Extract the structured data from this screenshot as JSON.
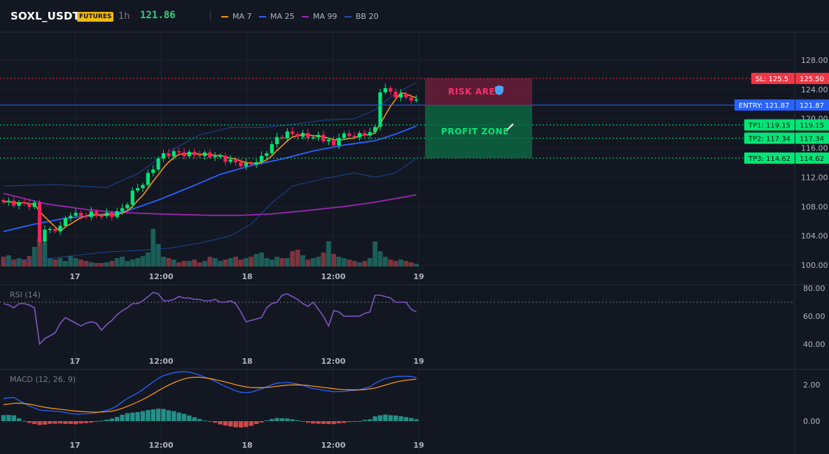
{
  "header": {
    "symbol": "SOXL_USDT",
    "badge": "FUTURES",
    "interval": "1h",
    "last_price": "121.86",
    "indicators": [
      {
        "label": "MA 7",
        "color": "#f7931a"
      },
      {
        "label": "MA 25",
        "color": "#2962ff"
      },
      {
        "label": "MA 99",
        "color": "#9c27b0"
      },
      {
        "label": "BB 20",
        "color": "#1e4fa8"
      }
    ]
  },
  "zones": {
    "risk_label": "RISK AREA",
    "profit_label": "PROFIT ZONE"
  },
  "tags": {
    "sl": {
      "text": "SL: 125.5",
      "value": "125.50",
      "price": 125.5,
      "color": "#f23645"
    },
    "entry": {
      "text": "ENTRY: 121.87",
      "value": "121.87",
      "price": 121.87,
      "color": "#2962ff"
    },
    "tp1": {
      "text": "TP1: 119.15",
      "value": "119.15",
      "price": 119.15,
      "color": "#00e676"
    },
    "tp2": {
      "text": "TP2: 117.34",
      "value": "117.34",
      "price": 117.34,
      "color": "#00e676"
    },
    "tp3": {
      "text": "TP3: 114.62",
      "value": "114.62",
      "price": 114.62,
      "color": "#00e676"
    }
  },
  "panes": {
    "rsi_title": "RSI (14)",
    "macd_title": "MACD (12, 26, 9)"
  },
  "chart_data": {
    "type": "candlestick",
    "price_axis_ticks": [
      "128.00",
      "124.00",
      "120.00",
      "116.00",
      "112.00",
      "108.00",
      "104.00",
      "100.00"
    ],
    "price_tick_values": [
      128,
      124,
      120,
      116,
      112,
      108,
      104,
      100
    ],
    "time_labels": [
      "17",
      "12:00",
      "18",
      "12:00",
      "19"
    ],
    "rsi": {
      "ticks": [
        "80.00",
        "60.00",
        "40.00"
      ],
      "tick_values": [
        80,
        60,
        40
      ],
      "overbought": 70,
      "values": [
        69,
        68,
        66,
        69,
        69,
        68,
        66,
        40,
        44,
        46,
        48,
        55,
        59,
        57,
        55,
        53,
        55,
        56,
        55,
        50,
        54,
        57,
        61,
        64,
        66,
        69,
        69,
        71,
        74,
        77,
        76,
        71,
        71,
        72,
        74,
        73,
        73,
        72,
        72,
        71,
        71,
        72,
        70,
        70,
        71,
        69,
        63,
        56,
        57,
        58,
        59,
        66,
        69,
        70,
        75,
        76,
        74,
        72,
        69,
        67,
        70,
        65,
        60,
        53,
        64,
        63,
        60,
        60,
        60,
        60,
        62,
        63,
        75,
        75,
        74,
        73,
        70,
        70,
        70,
        65,
        63
      ],
      "color": "#7e57c2"
    },
    "macd": {
      "ticks": [
        "2.00",
        "0.00"
      ],
      "tick_values": [
        2,
        0
      ],
      "macd_line": [
        1.24,
        1.28,
        1.3,
        1.14,
        0.98,
        0.83,
        0.72,
        0.61,
        0.57,
        0.57,
        0.54,
        0.52,
        0.47,
        0.42,
        0.38,
        0.4,
        0.4,
        0.42,
        0.47,
        0.53,
        0.6,
        0.69,
        0.84,
        1.05,
        1.25,
        1.4,
        1.55,
        1.74,
        1.95,
        2.15,
        2.35,
        2.5,
        2.58,
        2.66,
        2.7,
        2.72,
        2.7,
        2.62,
        2.53,
        2.42,
        2.32,
        2.19,
        2.04,
        1.91,
        1.79,
        1.66,
        1.59,
        1.56,
        1.59,
        1.68,
        1.77,
        1.89,
        2.0,
        2.09,
        2.11,
        2.13,
        2.09,
        2.04,
        1.98,
        1.87,
        1.79,
        1.75,
        1.7,
        1.66,
        1.62,
        1.63,
        1.63,
        1.67,
        1.69,
        1.72,
        1.81,
        1.87,
        2.08,
        2.22,
        2.34,
        2.4,
        2.45,
        2.47,
        2.47,
        2.45,
        2.4
      ],
      "signal_line": [
        0.91,
        0.94,
        0.98,
        0.99,
        0.97,
        0.93,
        0.88,
        0.82,
        0.76,
        0.72,
        0.68,
        0.65,
        0.62,
        0.58,
        0.55,
        0.53,
        0.51,
        0.5,
        0.49,
        0.5,
        0.52,
        0.55,
        0.61,
        0.7,
        0.81,
        0.93,
        1.05,
        1.19,
        1.34,
        1.5,
        1.67,
        1.83,
        1.98,
        2.11,
        2.23,
        2.32,
        2.39,
        2.41,
        2.41,
        2.38,
        2.34,
        2.28,
        2.22,
        2.15,
        2.08,
        2.0,
        1.94,
        1.88,
        1.85,
        1.84,
        1.84,
        1.85,
        1.88,
        1.92,
        1.95,
        1.98,
        1.99,
        1.99,
        1.98,
        1.96,
        1.92,
        1.89,
        1.85,
        1.82,
        1.78,
        1.75,
        1.73,
        1.72,
        1.72,
        1.72,
        1.74,
        1.77,
        1.82,
        1.9,
        1.98,
        2.07,
        2.14,
        2.2,
        2.25,
        2.28,
        2.3
      ],
      "macd_color": "#2962ff",
      "signal_color": "#f7931a",
      "hist_up_color": "#26a69a",
      "hist_down_color": "#ef5350"
    }
  }
}
